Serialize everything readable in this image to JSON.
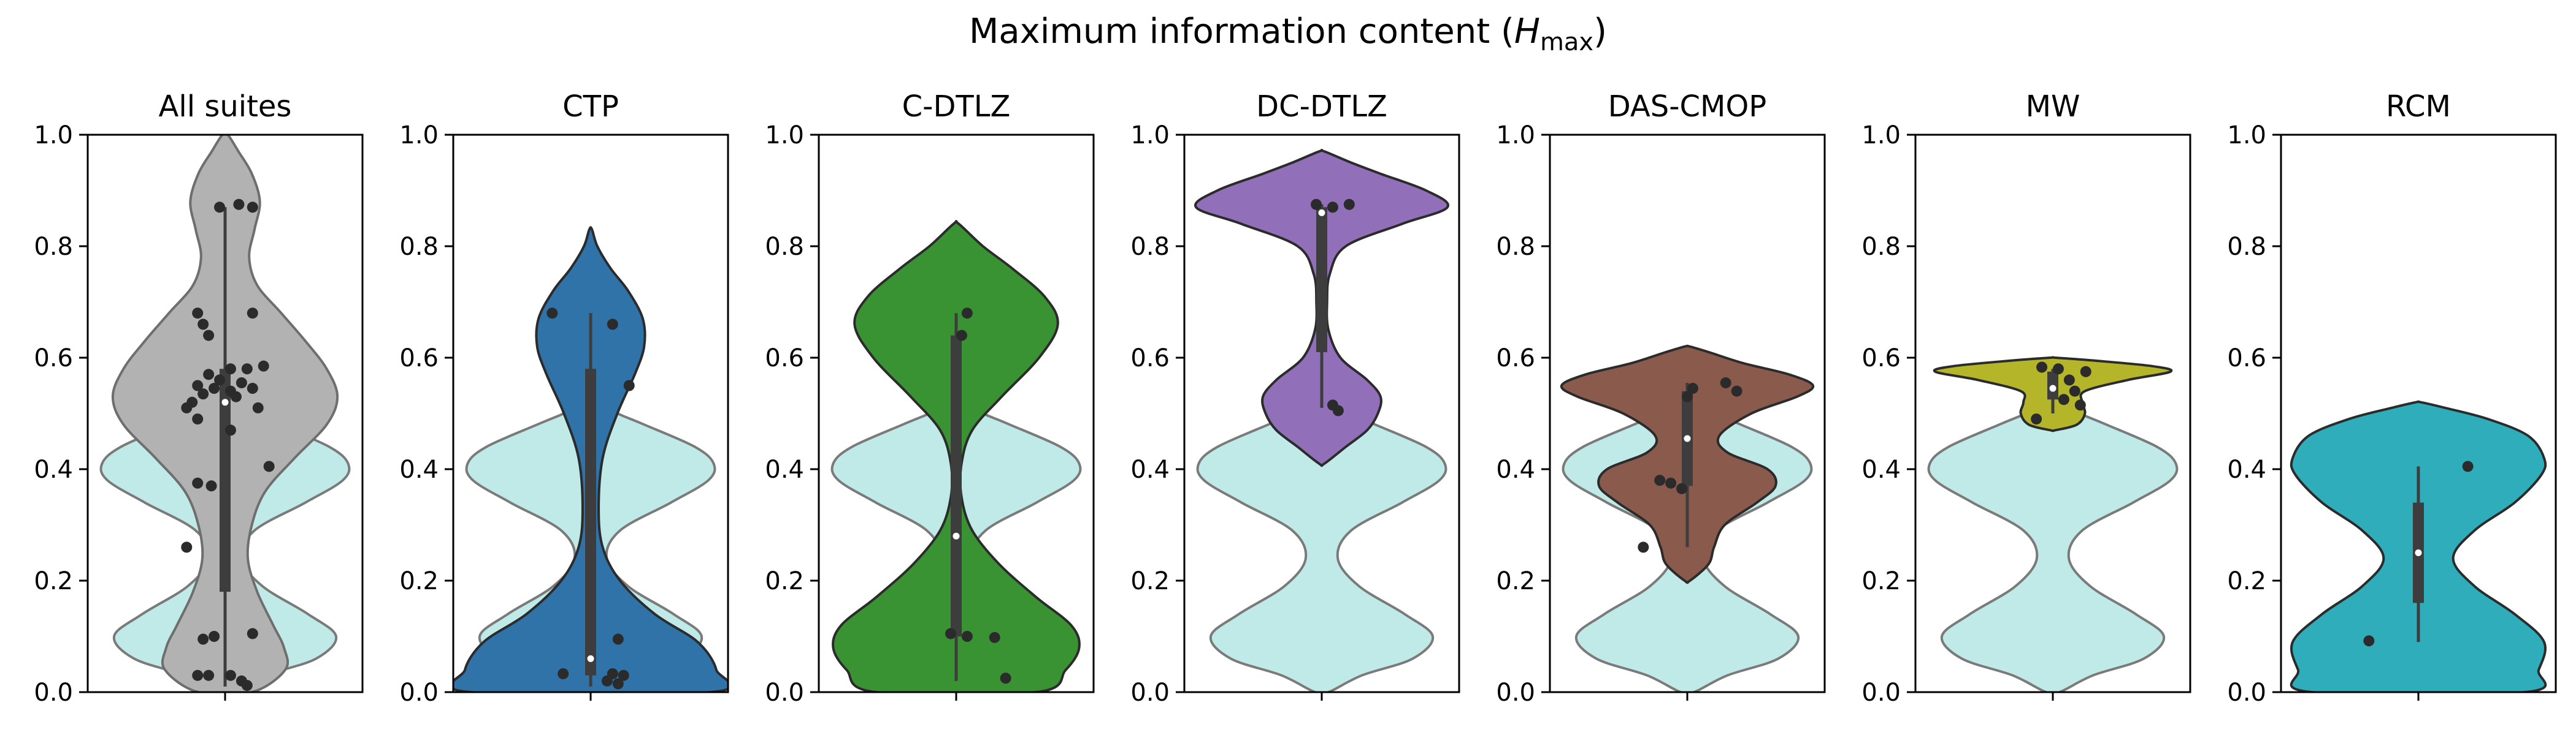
{
  "figure": {
    "title_prefix": "Maximum information content (",
    "title_symbol": "H",
    "title_subscript": "max",
    "title_suffix": ")"
  },
  "chart_data": {
    "type": "violin",
    "ylim": [
      0,
      1
    ],
    "y_ticks": [
      "0.0",
      "0.2",
      "0.4",
      "0.6",
      "0.8",
      "1.0"
    ],
    "grid": false,
    "reference_distribution": {
      "color": "#c0eae8",
      "description_values": [
        0.02,
        0.03,
        0.05,
        0.08,
        0.1,
        0.11,
        0.12,
        0.15,
        0.38,
        0.4,
        0.41,
        0.42,
        0.44
      ],
      "density_profile": [
        {
          "y": 0.0,
          "w": 0.05
        },
        {
          "y": 0.03,
          "w": 0.3
        },
        {
          "y": 0.06,
          "w": 0.68
        },
        {
          "y": 0.1,
          "w": 0.83
        },
        {
          "y": 0.14,
          "w": 0.62
        },
        {
          "y": 0.19,
          "w": 0.28
        },
        {
          "y": 0.24,
          "w": 0.12
        },
        {
          "y": 0.29,
          "w": 0.22
        },
        {
          "y": 0.34,
          "w": 0.6
        },
        {
          "y": 0.38,
          "w": 0.88
        },
        {
          "y": 0.41,
          "w": 0.92
        },
        {
          "y": 0.44,
          "w": 0.78
        },
        {
          "y": 0.48,
          "w": 0.4
        },
        {
          "y": 0.5,
          "w": 0.2
        },
        {
          "y": 0.52,
          "w": 0.04
        }
      ]
    },
    "panels": [
      {
        "name": "All suites",
        "color": "#b2b2b2",
        "edge": "#6e6e6e",
        "show_reference": true,
        "box": {
          "q1": 0.18,
          "median": 0.52,
          "q3": 0.58,
          "whisker_low": 0.01,
          "whisker_high": 0.87
        },
        "points": [
          {
            "x": -0.02,
            "y": 0.87
          },
          {
            "x": 0.05,
            "y": 0.875
          },
          {
            "x": 0.1,
            "y": 0.87
          },
          {
            "x": -0.1,
            "y": 0.68
          },
          {
            "x": 0.1,
            "y": 0.68
          },
          {
            "x": -0.08,
            "y": 0.66
          },
          {
            "x": -0.06,
            "y": 0.64
          },
          {
            "x": 0.02,
            "y": 0.58
          },
          {
            "x": 0.08,
            "y": 0.58
          },
          {
            "x": 0.14,
            "y": 0.585
          },
          {
            "x": -0.06,
            "y": 0.57
          },
          {
            "x": -0.02,
            "y": 0.56
          },
          {
            "x": 0.06,
            "y": 0.555
          },
          {
            "x": -0.1,
            "y": 0.55
          },
          {
            "x": -0.04,
            "y": 0.545
          },
          {
            "x": 0.1,
            "y": 0.545
          },
          {
            "x": 0.02,
            "y": 0.54
          },
          {
            "x": -0.08,
            "y": 0.535
          },
          {
            "x": 0.04,
            "y": 0.53
          },
          {
            "x": -0.12,
            "y": 0.52
          },
          {
            "x": -0.14,
            "y": 0.51
          },
          {
            "x": 0.12,
            "y": 0.51
          },
          {
            "x": -0.1,
            "y": 0.49
          },
          {
            "x": 0.02,
            "y": 0.47
          },
          {
            "x": 0.16,
            "y": 0.405
          },
          {
            "x": -0.1,
            "y": 0.375
          },
          {
            "x": -0.05,
            "y": 0.37
          },
          {
            "x": -0.14,
            "y": 0.26
          },
          {
            "x": 0.1,
            "y": 0.105
          },
          {
            "x": -0.04,
            "y": 0.1
          },
          {
            "x": -0.08,
            "y": 0.095
          },
          {
            "x": -0.1,
            "y": 0.03
          },
          {
            "x": -0.06,
            "y": 0.03
          },
          {
            "x": 0.02,
            "y": 0.03
          },
          {
            "x": 0.06,
            "y": 0.02
          },
          {
            "x": 0.08,
            "y": 0.012
          }
        ],
        "density_profile": [
          {
            "y": 0.0,
            "w": 0.2
          },
          {
            "y": 0.04,
            "w": 0.45
          },
          {
            "y": 0.08,
            "w": 0.44
          },
          {
            "y": 0.12,
            "w": 0.36
          },
          {
            "y": 0.18,
            "w": 0.24
          },
          {
            "y": 0.24,
            "w": 0.17
          },
          {
            "y": 0.3,
            "w": 0.2
          },
          {
            "y": 0.36,
            "w": 0.3
          },
          {
            "y": 0.42,
            "w": 0.52
          },
          {
            "y": 0.48,
            "w": 0.76
          },
          {
            "y": 0.53,
            "w": 0.84
          },
          {
            "y": 0.58,
            "w": 0.76
          },
          {
            "y": 0.63,
            "w": 0.6
          },
          {
            "y": 0.68,
            "w": 0.42
          },
          {
            "y": 0.73,
            "w": 0.24
          },
          {
            "y": 0.78,
            "w": 0.18
          },
          {
            "y": 0.83,
            "w": 0.22
          },
          {
            "y": 0.88,
            "w": 0.26
          },
          {
            "y": 0.93,
            "w": 0.2
          },
          {
            "y": 0.97,
            "w": 0.1
          },
          {
            "y": 1.0,
            "w": 0.02
          }
        ]
      },
      {
        "name": "CTP",
        "color": "#2f73a8",
        "edge": "#2b2b2b",
        "show_reference": true,
        "box": {
          "q1": 0.03,
          "median": 0.06,
          "q3": 0.58,
          "whisker_low": 0.01,
          "whisker_high": 0.68
        },
        "points": [
          {
            "x": -0.14,
            "y": 0.68
          },
          {
            "x": 0.08,
            "y": 0.66
          },
          {
            "x": 0.14,
            "y": 0.55
          },
          {
            "x": 0.1,
            "y": 0.095
          },
          {
            "x": -0.1,
            "y": 0.033
          },
          {
            "x": 0.08,
            "y": 0.033
          },
          {
            "x": 0.12,
            "y": 0.03
          },
          {
            "x": 0.06,
            "y": 0.02
          },
          {
            "x": 0.1,
            "y": 0.015
          }
        ],
        "density_profile": [
          {
            "y": 0.0,
            "w": 0.9
          },
          {
            "y": 0.04,
            "w": 0.94
          },
          {
            "y": 0.09,
            "w": 0.8
          },
          {
            "y": 0.14,
            "w": 0.48
          },
          {
            "y": 0.2,
            "w": 0.22
          },
          {
            "y": 0.26,
            "w": 0.09
          },
          {
            "y": 0.33,
            "w": 0.06
          },
          {
            "y": 0.42,
            "w": 0.09
          },
          {
            "y": 0.5,
            "w": 0.2
          },
          {
            "y": 0.57,
            "w": 0.33
          },
          {
            "y": 0.62,
            "w": 0.4
          },
          {
            "y": 0.67,
            "w": 0.39
          },
          {
            "y": 0.72,
            "w": 0.28
          },
          {
            "y": 0.76,
            "w": 0.15
          },
          {
            "y": 0.8,
            "w": 0.05
          },
          {
            "y": 0.83,
            "w": 0.01
          }
        ]
      },
      {
        "name": "C-DTLZ",
        "color": "#3a9333",
        "edge": "#2b2b2b",
        "show_reference": true,
        "box": {
          "q1": 0.1,
          "median": 0.28,
          "q3": 0.64,
          "whisker_low": 0.02,
          "whisker_high": 0.68
        },
        "points": [
          {
            "x": 0.04,
            "y": 0.68
          },
          {
            "x": 0.02,
            "y": 0.64
          },
          {
            "x": -0.02,
            "y": 0.105
          },
          {
            "x": 0.04,
            "y": 0.1
          },
          {
            "x": 0.14,
            "y": 0.098
          },
          {
            "x": 0.18,
            "y": 0.025
          }
        ],
        "density_profile": [
          {
            "y": 0.0,
            "w": 0.6
          },
          {
            "y": 0.04,
            "w": 0.82
          },
          {
            "y": 0.08,
            "w": 0.92
          },
          {
            "y": 0.12,
            "w": 0.86
          },
          {
            "y": 0.17,
            "w": 0.6
          },
          {
            "y": 0.23,
            "w": 0.32
          },
          {
            "y": 0.29,
            "w": 0.12
          },
          {
            "y": 0.35,
            "w": 0.04
          },
          {
            "y": 0.41,
            "w": 0.04
          },
          {
            "y": 0.47,
            "w": 0.12
          },
          {
            "y": 0.53,
            "w": 0.34
          },
          {
            "y": 0.6,
            "w": 0.62
          },
          {
            "y": 0.66,
            "w": 0.76
          },
          {
            "y": 0.71,
            "w": 0.66
          },
          {
            "y": 0.76,
            "w": 0.42
          },
          {
            "y": 0.8,
            "w": 0.2
          },
          {
            "y": 0.84,
            "w": 0.02
          }
        ]
      },
      {
        "name": "DC-DTLZ",
        "color": "#9270b9",
        "edge": "#2b2b2b",
        "show_reference": true,
        "box": {
          "q1": 0.61,
          "median": 0.86,
          "q3": 0.87,
          "whisker_low": 0.51,
          "whisker_high": 0.875
        },
        "points": [
          {
            "x": -0.02,
            "y": 0.875
          },
          {
            "x": 0.04,
            "y": 0.87
          },
          {
            "x": 0.1,
            "y": 0.875
          },
          {
            "x": 0.04,
            "y": 0.515
          },
          {
            "x": 0.06,
            "y": 0.505
          }
        ],
        "density_profile": [
          {
            "y": 0.41,
            "w": 0.02
          },
          {
            "y": 0.44,
            "w": 0.18
          },
          {
            "y": 0.47,
            "w": 0.34
          },
          {
            "y": 0.5,
            "w": 0.42
          },
          {
            "y": 0.53,
            "w": 0.44
          },
          {
            "y": 0.56,
            "w": 0.34
          },
          {
            "y": 0.6,
            "w": 0.14
          },
          {
            "y": 0.65,
            "w": 0.05
          },
          {
            "y": 0.7,
            "w": 0.04
          },
          {
            "y": 0.75,
            "w": 0.06
          },
          {
            "y": 0.8,
            "w": 0.18
          },
          {
            "y": 0.84,
            "w": 0.6
          },
          {
            "y": 0.87,
            "w": 0.94
          },
          {
            "y": 0.9,
            "w": 0.78
          },
          {
            "y": 0.93,
            "w": 0.44
          },
          {
            "y": 0.95,
            "w": 0.22
          },
          {
            "y": 0.97,
            "w": 0.02
          }
        ]
      },
      {
        "name": "DAS-CMOP",
        "color": "#8a5b4c",
        "edge": "#2b2b2b",
        "show_reference": true,
        "box": {
          "q1": 0.37,
          "median": 0.455,
          "q3": 0.54,
          "whisker_low": 0.26,
          "whisker_high": 0.555
        },
        "points": [
          {
            "x": 0.14,
            "y": 0.555
          },
          {
            "x": 0.02,
            "y": 0.545
          },
          {
            "x": 0.18,
            "y": 0.54
          },
          {
            "x": 0.0,
            "y": 0.53
          },
          {
            "x": -0.1,
            "y": 0.38
          },
          {
            "x": -0.06,
            "y": 0.375
          },
          {
            "x": -0.02,
            "y": 0.365
          },
          {
            "x": -0.16,
            "y": 0.26
          }
        ],
        "density_profile": [
          {
            "y": 0.2,
            "w": 0.02
          },
          {
            "y": 0.23,
            "w": 0.16
          },
          {
            "y": 0.26,
            "w": 0.2
          },
          {
            "y": 0.3,
            "w": 0.28
          },
          {
            "y": 0.34,
            "w": 0.52
          },
          {
            "y": 0.37,
            "w": 0.66
          },
          {
            "y": 0.4,
            "w": 0.6
          },
          {
            "y": 0.43,
            "w": 0.3
          },
          {
            "y": 0.46,
            "w": 0.24
          },
          {
            "y": 0.5,
            "w": 0.48
          },
          {
            "y": 0.53,
            "w": 0.82
          },
          {
            "y": 0.55,
            "w": 0.94
          },
          {
            "y": 0.57,
            "w": 0.76
          },
          {
            "y": 0.59,
            "w": 0.42
          },
          {
            "y": 0.61,
            "w": 0.16
          },
          {
            "y": 0.62,
            "w": 0.02
          }
        ]
      },
      {
        "name": "MW",
        "color": "#b5b52a",
        "edge": "#2b2b2b",
        "show_reference": true,
        "box": {
          "q1": 0.525,
          "median": 0.545,
          "q3": 0.575,
          "whisker_low": 0.5,
          "whisker_high": 0.58
        },
        "points": [
          {
            "x": -0.04,
            "y": 0.583
          },
          {
            "x": 0.02,
            "y": 0.58
          },
          {
            "x": 0.12,
            "y": 0.575
          },
          {
            "x": 0.06,
            "y": 0.56
          },
          {
            "x": 0.08,
            "y": 0.54
          },
          {
            "x": 0.04,
            "y": 0.525
          },
          {
            "x": 0.1,
            "y": 0.515
          },
          {
            "x": -0.06,
            "y": 0.49
          }
        ],
        "density_profile": [
          {
            "y": 0.47,
            "w": 0.02
          },
          {
            "y": 0.48,
            "w": 0.18
          },
          {
            "y": 0.5,
            "w": 0.24
          },
          {
            "y": 0.52,
            "w": 0.22
          },
          {
            "y": 0.54,
            "w": 0.24
          },
          {
            "y": 0.56,
            "w": 0.56
          },
          {
            "y": 0.575,
            "w": 0.88
          },
          {
            "y": 0.585,
            "w": 0.74
          },
          {
            "y": 0.595,
            "w": 0.3
          },
          {
            "y": 0.6,
            "w": 0.02
          }
        ]
      },
      {
        "name": "RCM",
        "color": "#2fadbb",
        "edge": "#2b2b2b",
        "show_reference": false,
        "box": {
          "q1": 0.16,
          "median": 0.25,
          "q3": 0.34,
          "whisker_low": 0.09,
          "whisker_high": 0.405
        },
        "points": [
          {
            "x": 0.18,
            "y": 0.405
          },
          {
            "x": -0.18,
            "y": 0.092
          }
        ],
        "density_profile": [
          {
            "y": 0.0,
            "w": 0.8
          },
          {
            "y": 0.04,
            "w": 0.9
          },
          {
            "y": 0.09,
            "w": 0.94
          },
          {
            "y": 0.14,
            "w": 0.72
          },
          {
            "y": 0.19,
            "w": 0.42
          },
          {
            "y": 0.24,
            "w": 0.26
          },
          {
            "y": 0.29,
            "w": 0.42
          },
          {
            "y": 0.34,
            "w": 0.72
          },
          {
            "y": 0.39,
            "w": 0.92
          },
          {
            "y": 0.42,
            "w": 0.94
          },
          {
            "y": 0.46,
            "w": 0.82
          },
          {
            "y": 0.49,
            "w": 0.52
          },
          {
            "y": 0.51,
            "w": 0.2
          },
          {
            "y": 0.52,
            "w": 0.02
          }
        ]
      }
    ]
  }
}
